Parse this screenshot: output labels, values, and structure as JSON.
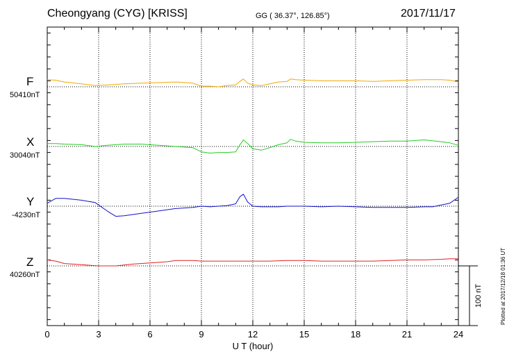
{
  "header": {
    "station": "Cheongyang (CYG)  [KRISS]",
    "coords": "GG ( 36.37°, 126.85°)",
    "date": "2017/11/17",
    "plotted": "Plotted at 2017/12/18 01:36 UT"
  },
  "chart_data": {
    "type": "line",
    "title": "Cheongyang (CYG)  [KRISS]",
    "xlabel": "U T (hour)",
    "ylabel": "",
    "xlim": [
      0,
      24
    ],
    "xticks": [
      0,
      3,
      6,
      9,
      12,
      15,
      18,
      21,
      24
    ],
    "grid": true,
    "scale_bar": {
      "label": "100 nT",
      "nT": 100
    },
    "panel_span_nT": 100,
    "series": [
      {
        "name": "F",
        "baseline_label": "50410nT",
        "baseline_nT": 50410,
        "color": "#f0a800",
        "x": [
          0,
          0.5,
          1,
          2,
          2.8,
          3.5,
          4.5,
          5.5,
          6.5,
          7.5,
          8.5,
          9,
          9.5,
          10,
          10.5,
          11,
          11.25,
          11.45,
          11.7,
          12,
          12.5,
          13,
          13.5,
          14,
          14.2,
          14.5,
          15,
          16,
          17,
          18,
          19,
          20,
          21,
          22,
          23,
          23.5,
          24
        ],
        "y": [
          50422,
          50421,
          50418,
          50415,
          50412,
          50413,
          50415,
          50416,
          50417,
          50418,
          50416,
          50411,
          50411,
          50410,
          50412,
          50413,
          50419,
          50423,
          50416,
          50413,
          50412,
          50415,
          50418,
          50419,
          50423,
          50422,
          50421,
          50420,
          50420,
          50420,
          50419,
          50420,
          50421,
          50422,
          50422,
          50421,
          50418
        ]
      },
      {
        "name": "X",
        "baseline_label": "30040nT",
        "baseline_nT": 30040,
        "color": "#22cc22",
        "x": [
          0,
          0.5,
          1,
          2,
          2.8,
          3.5,
          4.5,
          5.5,
          6.5,
          7.5,
          8.5,
          9,
          9.5,
          10,
          10.5,
          11,
          11.25,
          11.45,
          11.7,
          12,
          12.5,
          13,
          13.5,
          14,
          14.2,
          14.5,
          15,
          16,
          17,
          18,
          19,
          20,
          21,
          22,
          23,
          23.5,
          24
        ],
        "y": [
          30045,
          30045,
          30044,
          30043,
          30040,
          30042,
          30044,
          30044,
          30042,
          30040,
          30038,
          30031,
          30029,
          30030,
          30030,
          30031,
          30043,
          30051,
          30045,
          30036,
          30034,
          30038,
          30043,
          30046,
          30052,
          30049,
          30047,
          30046,
          30046,
          30047,
          30048,
          30049,
          30049,
          30051,
          30048,
          30046,
          30042
        ]
      },
      {
        "name": "Y",
        "baseline_label": "-4230nT",
        "baseline_nT": -4230,
        "color": "#1010cc",
        "x": [
          0,
          0.5,
          1,
          2,
          2.8,
          3.5,
          4,
          4.5,
          5.5,
          6.5,
          7.5,
          8.5,
          9,
          9.5,
          10,
          10.5,
          11,
          11.25,
          11.45,
          11.7,
          12,
          12.5,
          13,
          13.5,
          14,
          15,
          16,
          17,
          18,
          19,
          20,
          21,
          22,
          22.5,
          23,
          23.5,
          24
        ],
        "y": [
          -4225,
          -4217,
          -4217,
          -4220,
          -4224,
          -4238,
          -4247,
          -4246,
          -4242,
          -4238,
          -4234,
          -4232,
          -4230,
          -4231,
          -4230,
          -4229,
          -4226,
          -4214,
          -4210,
          -4223,
          -4230,
          -4231,
          -4231,
          -4231,
          -4230,
          -4230,
          -4231,
          -4230,
          -4231,
          -4232,
          -4232,
          -4232,
          -4231,
          -4231,
          -4228,
          -4225,
          -4215
        ]
      },
      {
        "name": "Z",
        "baseline_label": "40260nT",
        "baseline_nT": 40260,
        "color": "#e02020",
        "x": [
          0,
          0.5,
          1,
          2,
          3,
          4,
          5,
          6,
          7,
          7.5,
          8.5,
          9,
          10,
          11,
          12,
          13,
          14,
          15,
          16,
          17,
          18,
          19,
          20,
          21,
          22,
          23,
          23.5,
          24
        ],
        "y": [
          40270,
          40268,
          40264,
          40262,
          40260,
          40260,
          40263,
          40265,
          40267,
          40269,
          40269,
          40268,
          40268,
          40268,
          40268,
          40268,
          40269,
          40269,
          40268,
          40268,
          40268,
          40268,
          40269,
          40270,
          40270,
          40271,
          40272,
          40272
        ]
      }
    ]
  }
}
